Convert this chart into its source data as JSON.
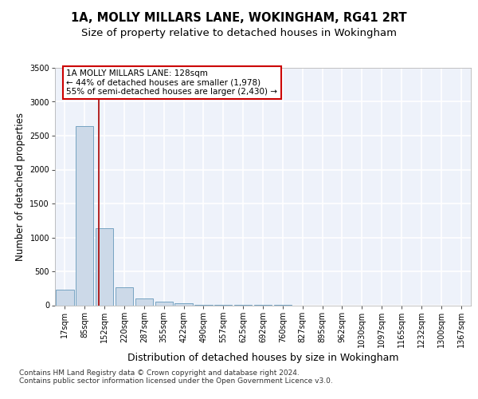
{
  "title_line1": "1A, MOLLY MILLARS LANE, WOKINGHAM, RG41 2RT",
  "title_line2": "Size of property relative to detached houses in Wokingham",
  "xlabel": "Distribution of detached houses by size in Wokingham",
  "ylabel": "Number of detached properties",
  "bar_color": "#ccd9e8",
  "bar_edge_color": "#6699bb",
  "bar_categories": [
    "17sqm",
    "85sqm",
    "152sqm",
    "220sqm",
    "287sqm",
    "355sqm",
    "422sqm",
    "490sqm",
    "557sqm",
    "625sqm",
    "692sqm",
    "760sqm",
    "827sqm",
    "895sqm",
    "962sqm",
    "1030sqm",
    "1097sqm",
    "1165sqm",
    "1232sqm",
    "1300sqm",
    "1367sqm"
  ],
  "bar_values": [
    230,
    2640,
    1130,
    270,
    105,
    55,
    30,
    5,
    3,
    2,
    1,
    1,
    0,
    0,
    0,
    0,
    0,
    0,
    0,
    0,
    0
  ],
  "ylim": [
    0,
    3500
  ],
  "yticks": [
    0,
    500,
    1000,
    1500,
    2000,
    2500,
    3000,
    3500
  ],
  "property_line_x": 1.72,
  "annotation_text": "1A MOLLY MILLARS LANE: 128sqm\n← 44% of detached houses are smaller (1,978)\n55% of semi-detached houses are larger (2,430) →",
  "annotation_box_color": "#ffffff",
  "annotation_box_edge": "#cc0000",
  "red_line_color": "#aa0000",
  "background_color": "#eef2fa",
  "grid_color": "#ffffff",
  "footer_text": "Contains HM Land Registry data © Crown copyright and database right 2024.\nContains public sector information licensed under the Open Government Licence v3.0.",
  "title_fontsize": 10.5,
  "subtitle_fontsize": 9.5,
  "xlabel_fontsize": 9,
  "ylabel_fontsize": 8.5,
  "tick_fontsize": 7,
  "annotation_fontsize": 7.5,
  "footer_fontsize": 6.5
}
